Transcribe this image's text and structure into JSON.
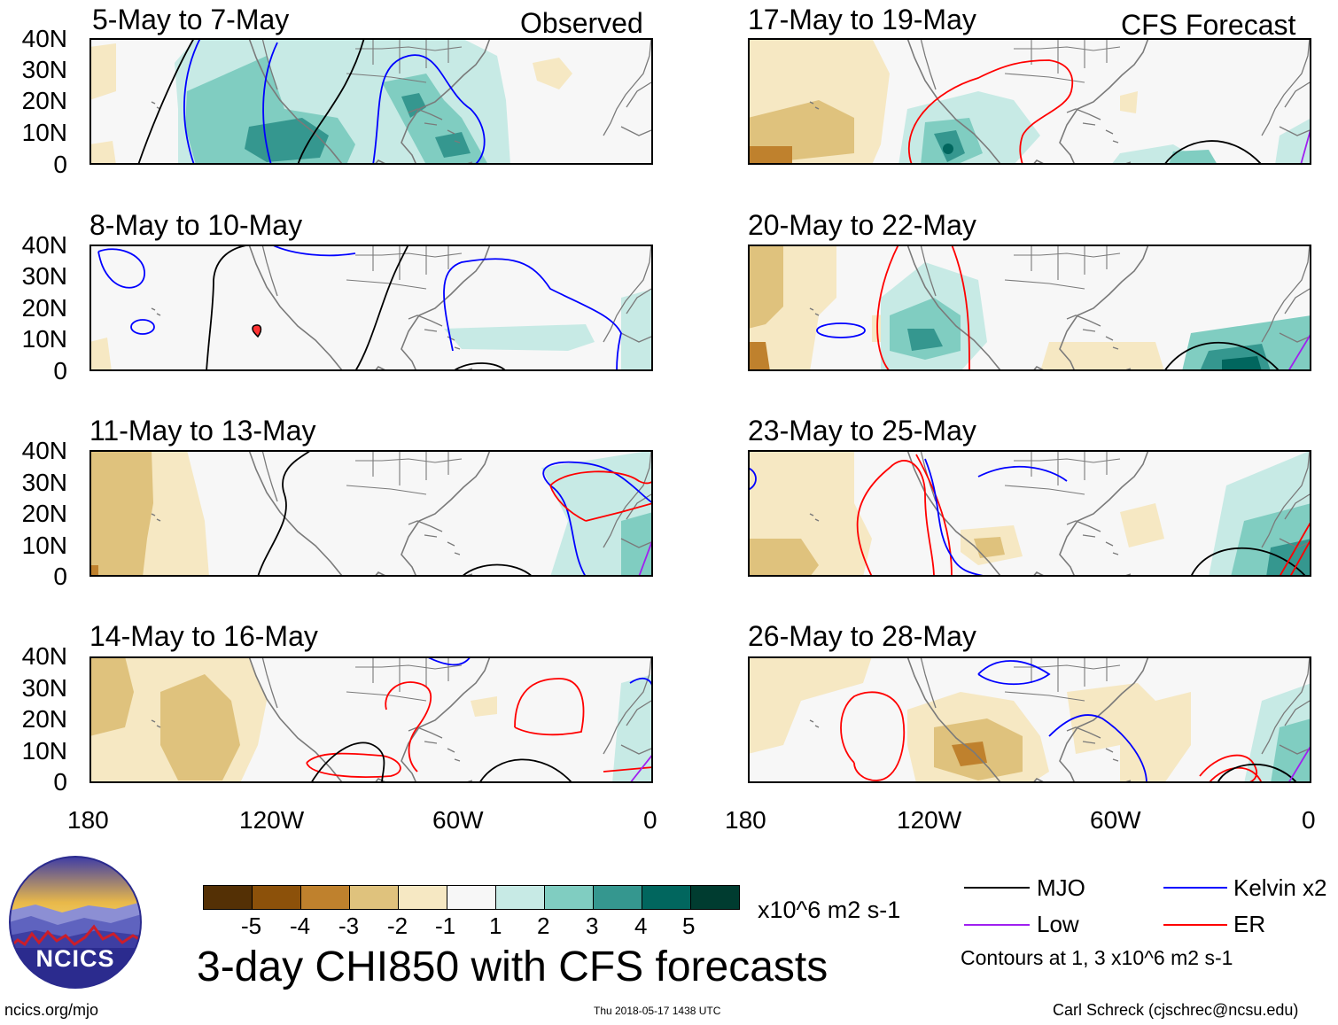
{
  "panels": {
    "p1": {
      "title": "5-May to 7-May",
      "corner": "Observed"
    },
    "p2": {
      "title": "17-May to 19-May",
      "corner": "CFS Forecast"
    },
    "p3": {
      "title": "8-May to 10-May"
    },
    "p4": {
      "title": "20-May to 22-May"
    },
    "p5": {
      "title": "11-May to 13-May"
    },
    "p6": {
      "title": "23-May to 25-May"
    },
    "p7": {
      "title": "14-May to 16-May"
    },
    "p8": {
      "title": "26-May to 28-May"
    }
  },
  "lat_labels": [
    "40N",
    "30N",
    "20N",
    "10N",
    "0"
  ],
  "lon_labels": [
    "180",
    "120W",
    "60W",
    "0"
  ],
  "colorbar": {
    "colors": [
      "#543005",
      "#8c510a",
      "#bf812d",
      "#dfc27d",
      "#f6e8c3",
      "#f7f7f7",
      "#c7eae5",
      "#80cdc1",
      "#35978f",
      "#01665e",
      "#003c30"
    ],
    "labels": [
      "-5",
      "-4",
      "-3",
      "-2",
      "-1",
      "1",
      "2",
      "3",
      "4",
      "5"
    ],
    "units": "x10^6 m2 s-1"
  },
  "main_title": "3-day CHI850 with CFS forecasts",
  "legend": {
    "mjo": "MJO",
    "kelvin": "Kelvin x2",
    "low": "Low",
    "er": "ER",
    "contours_note": "Contours at 1, 3 x10^6 m2 s-1"
  },
  "legend_colors": {
    "mjo": "#000000",
    "kelvin": "#0000ff",
    "low": "#a020f0",
    "er": "#ff0000"
  },
  "logo_text": "NCICS",
  "footer": {
    "url": "ncics.org/mjo",
    "timestamp": "Thu 2018-05-17 1438 UTC",
    "author": "Carl Schreck (cjschrec@ncsu.edu)"
  }
}
